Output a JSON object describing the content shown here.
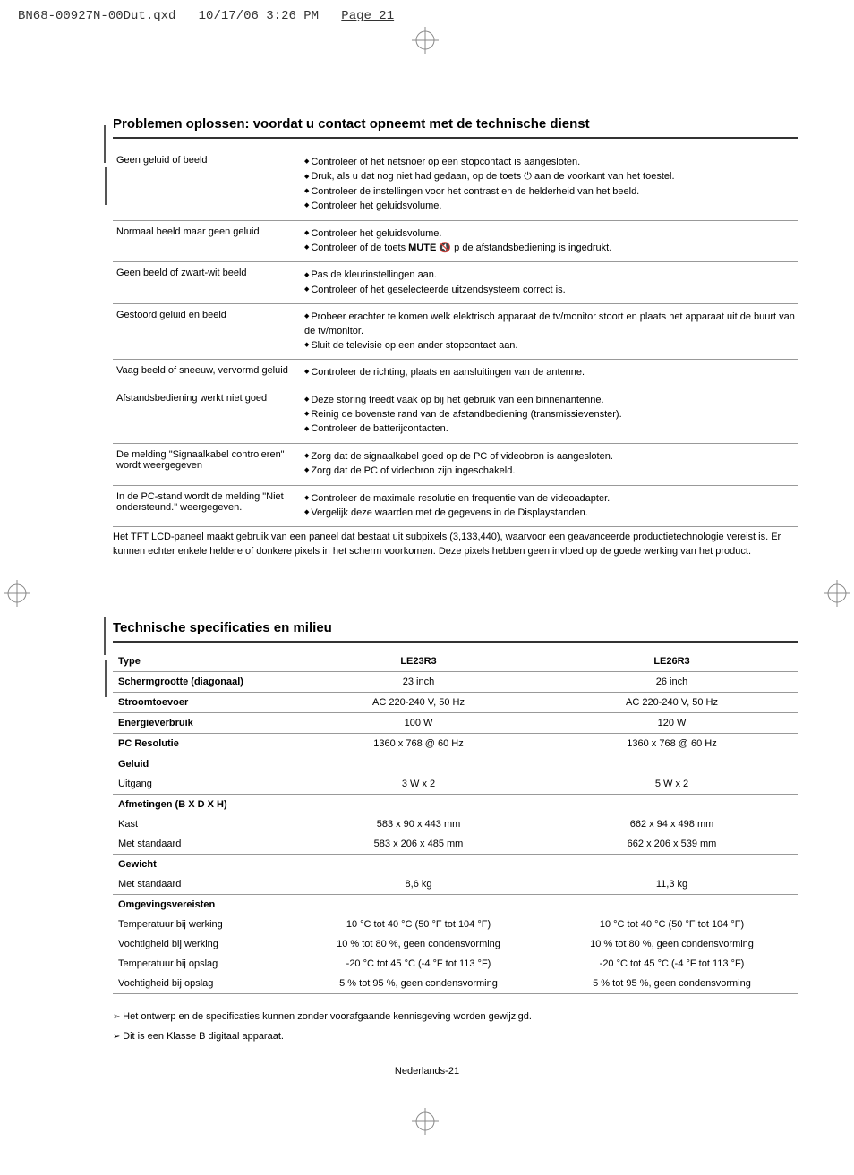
{
  "header": {
    "filename": "BN68-00927N-00Dut.qxd",
    "datetime": "10/17/06 3:26 PM",
    "page": "Page 21"
  },
  "section1_title": "Problemen oplossen: voordat u contact opneemt met de technische dienst",
  "trouble": [
    {
      "issue": "Geen geluid of beeld",
      "fixes": [
        "Controleer of het netsnoer op een stopcontact is aangesloten.",
        "Druk, als u dat nog niet had gedaan, op de toets  ⏻  aan de voorkant van het toestel.",
        "Controleer de instellingen voor het contrast en de helderheid van het beeld.",
        "Controleer het geluidsvolume."
      ]
    },
    {
      "issue": "Normaal beeld maar geen geluid",
      "fixes": [
        "Controleer het geluidsvolume.",
        "Controleer of de toets MUTE 🔇 p de afstandsbediening is ingedrukt."
      ]
    },
    {
      "issue": "Geen beeld of zwart-wit beeld",
      "fixes": [
        "Pas de kleurinstellingen aan.",
        "Controleer of het geselecteerde uitzendsysteem correct is."
      ]
    },
    {
      "issue": "Gestoord geluid en beeld",
      "fixes": [
        "Probeer erachter te komen welk elektrisch apparaat de tv/monitor stoort en plaats het apparaat uit de buurt van de tv/monitor.",
        "Sluit de televisie op een ander stopcontact aan."
      ]
    },
    {
      "issue": "Vaag beeld of sneeuw, vervormd geluid",
      "fixes": [
        "Controleer de richting, plaats en aansluitingen van de antenne."
      ]
    },
    {
      "issue": "Afstandsbediening werkt niet goed",
      "fixes": [
        "Deze storing treedt vaak op bij het gebruik van een binnenantenne.",
        "Reinig de bovenste rand van de afstandbediening (transmissievenster).",
        "Controleer de batterijcontacten."
      ]
    },
    {
      "issue": "De melding \"Signaalkabel controleren\" wordt weergegeven",
      "fixes": [
        "Zorg dat de signaalkabel goed op de PC of videobron is aangesloten.",
        "Zorg dat de PC of videobron zijn ingeschakeld."
      ]
    },
    {
      "issue": "In de PC-stand wordt de melding \"Niet ondersteund.\" weergegeven.",
      "fixes": [
        "Controleer de maximale resolutie en frequentie van de videoadapter.",
        "Vergelijk deze waarden met de gegevens in de Displaystanden."
      ]
    }
  ],
  "tft_note": "Het TFT LCD-paneel maakt gebruik van een paneel dat bestaat uit subpixels (3,133,440), waarvoor een geavanceerde productietechnologie vereist is. Er kunnen echter enkele heldere of donkere pixels in het scherm voorkomen. Deze pixels hebben geen invloed op de goede werking van het product.",
  "section2_title": "Technische specificaties en milieu",
  "spec_headers": {
    "type": "Type",
    "m1": "LE23R3",
    "m2": "LE26R3"
  },
  "spec": [
    {
      "k": "Schermgrootte (diagonaal)",
      "v1": "23 inch",
      "v2": "26 inch",
      "bold": true
    },
    {
      "k": "Stroomtoevoer",
      "v1": "AC 220-240 V, 50 Hz",
      "v2": "AC 220-240 V, 50 Hz",
      "bold": true
    },
    {
      "k": "Energieverbruik",
      "v1": "100 W",
      "v2": "120 W",
      "bold": true
    },
    {
      "k": "PC Resolutie",
      "v1": "1360 x 768 @ 60 Hz",
      "v2": "1360 x 768 @ 60 Hz",
      "bold": true
    }
  ],
  "geluid_label": "Geluid",
  "geluid_sub": "Uitgang",
  "geluid_v1": "3 W x 2",
  "geluid_v2": "5 W x 2",
  "afm_label": "Afmetingen (B X D X H)",
  "afm_rows": [
    {
      "k": "Kast",
      "v1": "583 x 90 x 443 mm",
      "v2": "662 x 94 x 498 mm"
    },
    {
      "k": "Met standaard",
      "v1": "583 x 206 x 485 mm",
      "v2": "662 x 206 x 539 mm"
    }
  ],
  "gewicht_label": "Gewicht",
  "gewicht_rows": [
    {
      "k": "Met standaard",
      "v1": "8,6 kg",
      "v2": "11,3 kg"
    }
  ],
  "env_label": "Omgevingsvereisten",
  "env_rows": [
    {
      "k": "Temperatuur bij werking",
      "v1": "10 °C tot 40 °C (50 °F tot 104 °F)",
      "v2": "10 °C tot 40 °C (50 °F tot 104 °F)"
    },
    {
      "k": "Vochtigheid bij werking",
      "v1": "10 % tot 80 %, geen condensvorming",
      "v2": "10 % tot 80 %, geen condensvorming"
    },
    {
      "k": "Temperatuur bij opslag",
      "v1": "-20 °C tot 45 °C (-4 °F tot 113 °F)",
      "v2": "-20 °C tot 45 °C (-4 °F tot 113 °F)"
    },
    {
      "k": "Vochtigheid bij opslag",
      "v1": "5 % tot 95 %, geen condensvorming",
      "v2": "5 % tot 95 %, geen condensvorming"
    }
  ],
  "notes": [
    "Het ontwerp en de specificaties kunnen zonder voorafgaande kennisgeving worden gewijzigd.",
    "Dit is een Klasse B digitaal apparaat."
  ],
  "footer": "Nederlands-21"
}
